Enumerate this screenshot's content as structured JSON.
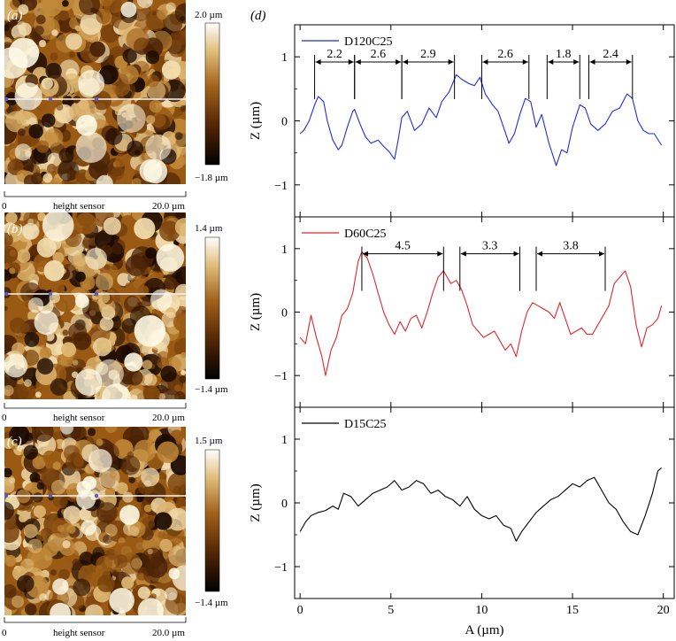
{
  "figure": {
    "panel_labels": [
      "(a)",
      "(b)",
      "(c)",
      "(d)"
    ]
  },
  "afm_panels": [
    {
      "label": "(a)",
      "colorbar_max": "2.0 µm",
      "colorbar_min": "−1.8 µm",
      "scale_start": "0",
      "scale_end": "20.0 µm",
      "scale_caption": "height sensor"
    },
    {
      "label": "(b)",
      "colorbar_max": "1.4 µm",
      "colorbar_min": "−1.4 µm",
      "scale_start": "0",
      "scale_end": "20.0 µm",
      "scale_caption": "height sensor"
    },
    {
      "label": "(c)",
      "colorbar_max": "1.5 µm",
      "colorbar_min": "−1.4 µm",
      "scale_start": "0",
      "scale_end": "20.0 µm",
      "scale_caption": "height sensor"
    }
  ],
  "colors": {
    "afm_dark": "#1a0a02",
    "afm_mid": "#9a5a14",
    "afm_light": "#f3deb0",
    "afm_white": "#fffbe8",
    "D120C25": "#1f2fd6",
    "D60C25": "#e0262b",
    "D15C25": "#000000"
  },
  "chart_data": {
    "type": "line",
    "title": "",
    "xlabel": "A (µm)",
    "ylabel": "Z (µm)",
    "xlim": [
      -0.3,
      20.6
    ],
    "xticks": [
      0,
      5,
      10,
      15,
      20
    ],
    "xtick_labels": [
      "0",
      "5",
      "10",
      "15",
      "20"
    ],
    "subplots": [
      {
        "name": "D120C25",
        "ylim": [
          -1.5,
          1.5
        ],
        "yticks": [
          -1,
          0,
          1
        ],
        "ytick_labels": [
          "−1",
          "0",
          "1"
        ],
        "x": [
          0,
          0.2,
          0.5,
          0.8,
          1.0,
          1.3,
          1.5,
          1.8,
          2.1,
          2.3,
          2.6,
          2.9,
          3.0,
          3.3,
          3.6,
          3.9,
          4.3,
          4.6,
          4.9,
          5.2,
          5.4,
          5.6,
          5.9,
          6.3,
          6.7,
          7.1,
          7.5,
          7.8,
          8.2,
          8.6,
          8.9,
          9.3,
          9.6,
          9.9,
          10.2,
          10.6,
          10.9,
          11.2,
          11.5,
          11.8,
          12.1,
          12.4,
          12.7,
          13.0,
          13.3,
          13.7,
          14.1,
          14.4,
          14.7,
          15.0,
          15.4,
          15.7,
          16.0,
          16.4,
          16.8,
          17.2,
          17.6,
          18.0,
          18.3,
          18.6,
          18.9,
          19.2,
          19.5,
          19.9
        ],
        "y": [
          -0.2,
          -0.15,
          0.0,
          0.25,
          0.38,
          0.3,
          0.0,
          -0.3,
          -0.45,
          -0.38,
          -0.1,
          0.15,
          0.18,
          -0.05,
          -0.25,
          -0.35,
          -0.3,
          -0.4,
          -0.48,
          -0.6,
          -0.3,
          0.05,
          0.15,
          -0.15,
          -0.05,
          0.2,
          0.05,
          0.3,
          0.45,
          0.72,
          0.65,
          0.58,
          0.55,
          0.68,
          0.42,
          0.25,
          0.15,
          -0.1,
          -0.35,
          -0.2,
          0.1,
          0.35,
          0.3,
          -0.1,
          0.1,
          -0.35,
          -0.7,
          -0.45,
          -0.5,
          -0.1,
          0.25,
          0.2,
          -0.05,
          -0.15,
          -0.05,
          0.15,
          0.2,
          0.42,
          0.35,
          0.0,
          -0.15,
          -0.2,
          -0.2,
          -0.38
        ],
        "annotations": [
          {
            "text": "2.2",
            "x_start": 0.8,
            "x_end": 3.0,
            "y": 0.92
          },
          {
            "text": "2.6",
            "x_start": 3.0,
            "x_end": 5.6,
            "y": 0.92
          },
          {
            "text": "2.9",
            "x_start": 5.6,
            "x_end": 8.5,
            "y": 0.92
          },
          {
            "text": "2.6",
            "x_start": 10.0,
            "x_end": 12.6,
            "y": 0.92
          },
          {
            "text": "1.8",
            "x_start": 13.6,
            "x_end": 15.4,
            "y": 0.92
          },
          {
            "text": "2.4",
            "x_start": 15.9,
            "x_end": 18.3,
            "y": 0.92
          }
        ]
      },
      {
        "name": "D60C25",
        "ylim": [
          -1.5,
          1.5
        ],
        "yticks": [
          -1,
          0,
          1
        ],
        "ytick_labels": [
          "−1",
          "0",
          "1"
        ],
        "x": [
          0,
          0.3,
          0.6,
          0.9,
          1.2,
          1.4,
          1.7,
          2.0,
          2.3,
          2.6,
          2.9,
          3.2,
          3.4,
          3.7,
          4.0,
          4.3,
          4.6,
          4.9,
          5.2,
          5.5,
          5.8,
          6.1,
          6.4,
          6.7,
          7.0,
          7.3,
          7.6,
          7.9,
          8.3,
          8.6,
          8.9,
          9.2,
          9.5,
          9.8,
          10.1,
          10.4,
          10.7,
          11.0,
          11.3,
          11.6,
          11.9,
          12.2,
          12.5,
          12.8,
          13.1,
          13.4,
          13.7,
          14.0,
          14.3,
          14.6,
          14.9,
          15.2,
          15.5,
          15.8,
          16.1,
          16.4,
          16.7,
          17.0,
          17.3,
          17.6,
          17.9,
          18.2,
          18.5,
          18.8,
          19.1,
          19.4,
          19.7,
          19.9
        ],
        "y": [
          -0.4,
          -0.5,
          -0.05,
          -0.4,
          -0.7,
          -1.0,
          -0.6,
          -0.4,
          -0.05,
          0.05,
          0.3,
          0.8,
          0.95,
          0.85,
          0.6,
          0.3,
          0.0,
          -0.2,
          -0.35,
          -0.15,
          -0.3,
          -0.1,
          -0.05,
          -0.25,
          0.0,
          0.3,
          0.55,
          0.65,
          0.45,
          0.5,
          0.35,
          0.1,
          -0.2,
          -0.3,
          -0.4,
          -0.35,
          -0.3,
          -0.45,
          -0.6,
          -0.5,
          -0.7,
          -0.3,
          0.0,
          0.15,
          0.1,
          0.05,
          0.0,
          -0.1,
          0.15,
          -0.1,
          -0.35,
          -0.3,
          -0.25,
          -0.35,
          -0.35,
          -0.2,
          -0.05,
          0.1,
          0.45,
          0.55,
          0.65,
          0.4,
          -0.2,
          -0.55,
          -0.25,
          -0.2,
          -0.1,
          0.1
        ],
        "annotations": [
          {
            "text": "4.5",
            "x_start": 3.4,
            "x_end": 7.9,
            "y": 0.92
          },
          {
            "text": "3.3",
            "x_start": 8.8,
            "x_end": 12.1,
            "y": 0.92
          },
          {
            "text": "3.8",
            "x_start": 13.0,
            "x_end": 16.8,
            "y": 0.92
          }
        ]
      },
      {
        "name": "D15C25",
        "ylim": [
          -1.5,
          1.5
        ],
        "yticks": [
          -1,
          0,
          1
        ],
        "ytick_labels": [
          "−1",
          "0",
          "1"
        ],
        "x": [
          0,
          0.3,
          0.6,
          1.0,
          1.4,
          1.8,
          2.1,
          2.4,
          2.8,
          3.2,
          3.6,
          4.0,
          4.4,
          4.8,
          5.2,
          5.6,
          6.0,
          6.4,
          6.8,
          7.2,
          7.6,
          8.0,
          8.4,
          8.8,
          9.2,
          9.6,
          10.0,
          10.4,
          10.8,
          11.2,
          11.6,
          11.9,
          12.2,
          12.6,
          13.0,
          13.4,
          13.8,
          14.2,
          14.6,
          15.0,
          15.4,
          15.8,
          16.2,
          16.6,
          17.0,
          17.4,
          17.8,
          18.2,
          18.6,
          19.0,
          19.4,
          19.7,
          19.9
        ],
        "y": [
          -0.45,
          -0.3,
          -0.2,
          -0.15,
          -0.12,
          -0.05,
          -0.1,
          0.15,
          0.1,
          -0.05,
          0.05,
          0.15,
          0.2,
          0.25,
          0.35,
          0.2,
          0.25,
          0.35,
          0.3,
          0.15,
          0.2,
          0.1,
          0.05,
          -0.05,
          0.1,
          -0.1,
          -0.2,
          -0.25,
          -0.2,
          -0.35,
          -0.4,
          -0.6,
          -0.45,
          -0.3,
          -0.15,
          -0.05,
          0.05,
          0.1,
          0.2,
          0.3,
          0.25,
          0.35,
          0.4,
          0.2,
          0.0,
          -0.1,
          -0.3,
          -0.45,
          -0.5,
          -0.2,
          0.15,
          0.5,
          0.55
        ]
      }
    ]
  }
}
